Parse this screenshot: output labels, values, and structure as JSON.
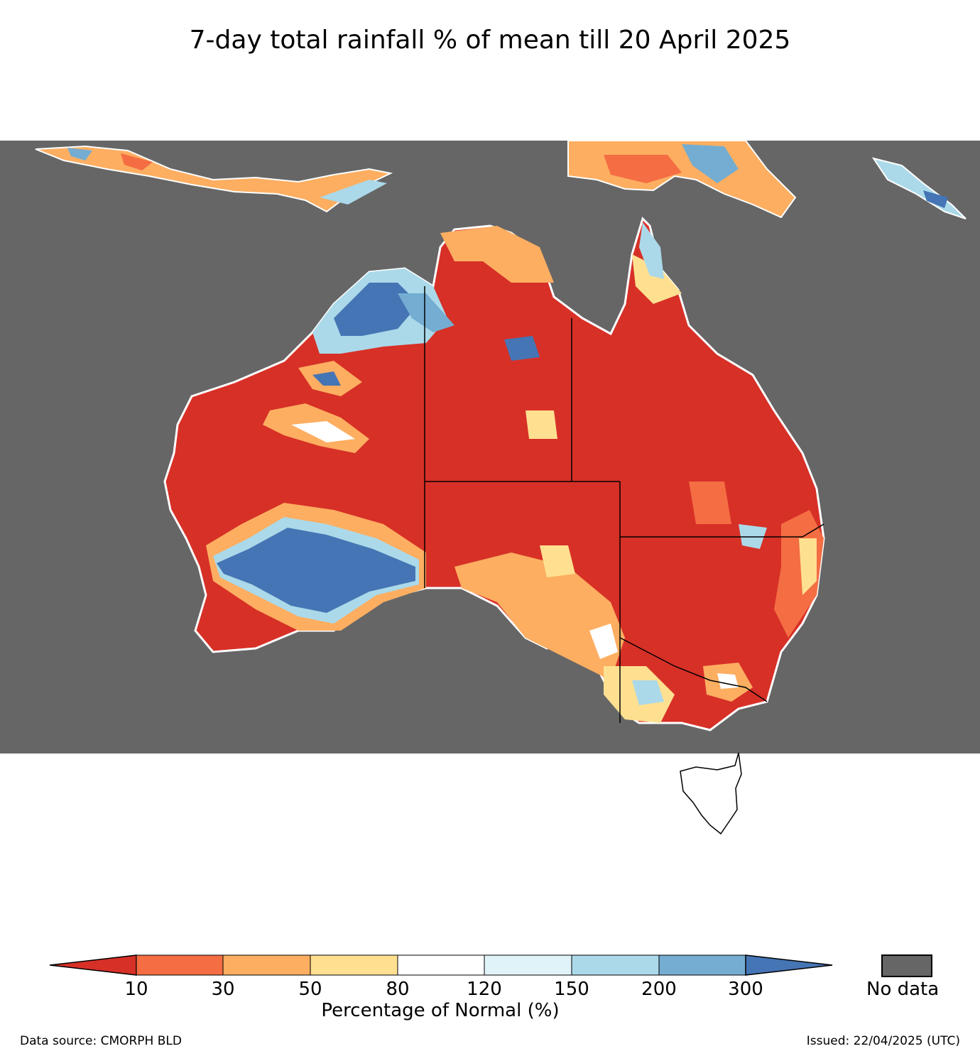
{
  "title": "7-day total rainfall % of mean till 20 April 2025",
  "colors": {
    "no_data": "#666666",
    "lt10": "#d73027",
    "c10_30": "#f46d43",
    "c30_50": "#fdae61",
    "c50_80": "#fee090",
    "c80_120": "#ffffff",
    "c120_150": "#e0f3f8",
    "c150_200": "#abd9e9",
    "c200_300": "#74add1",
    "gt300": "#4575b4"
  },
  "colorbar": {
    "ticks": [
      "10",
      "30",
      "50",
      "80",
      "120",
      "150",
      "200",
      "300"
    ],
    "caption": "Percentage of Normal (%)",
    "no_data_label": "No data"
  },
  "footer": {
    "source": "Data source: CMORPH BLD",
    "issued": "Issued: 22/04/2025 (UTC)"
  },
  "map_layers": [
    {
      "name": "main-dry-region",
      "class": "lt10"
    },
    {
      "name": "southwest-wet-region",
      "class": "gt300"
    },
    {
      "name": "kimberley-wet-region",
      "class": "gt300"
    }
  ]
}
